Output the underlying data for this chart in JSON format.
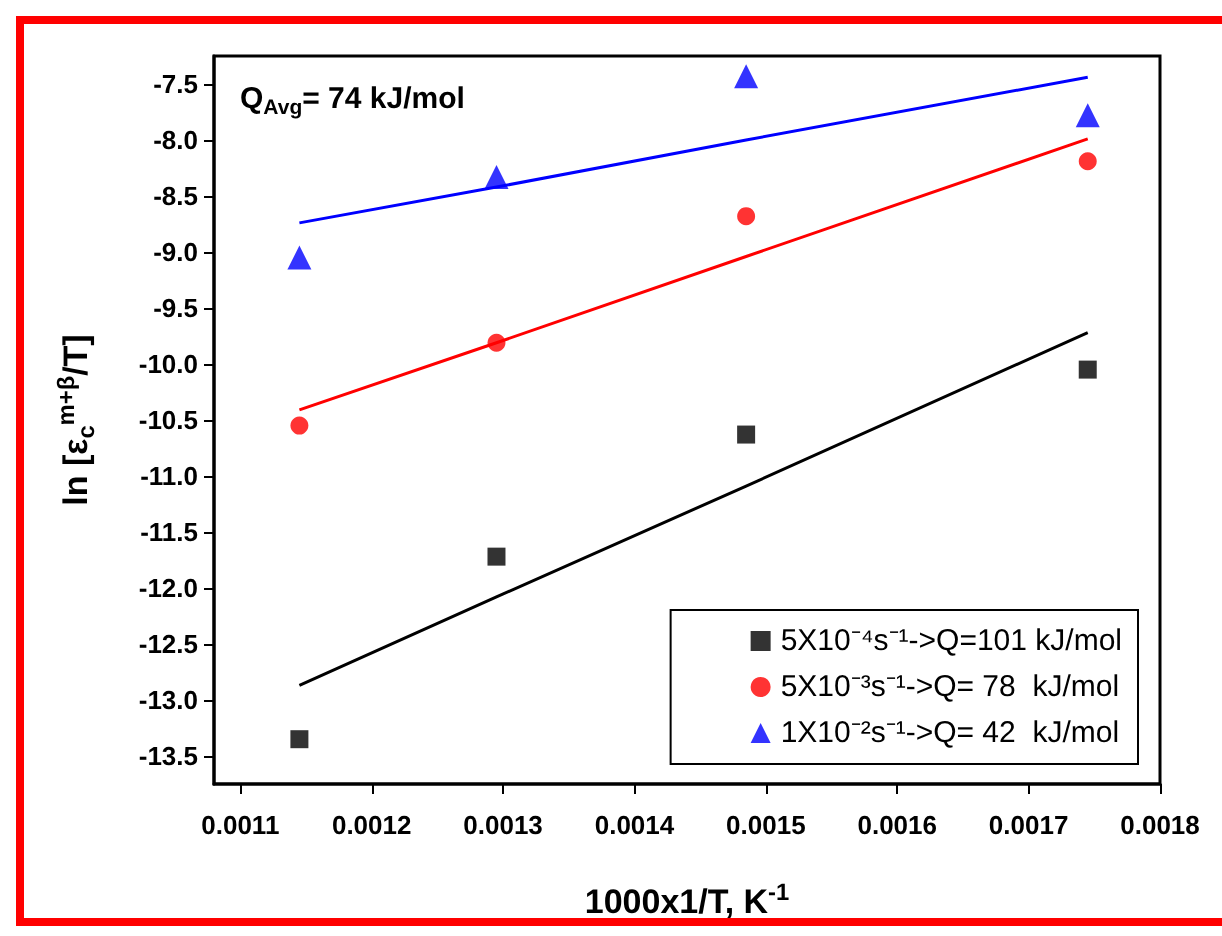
{
  "chart_data": {
    "type": "scatter",
    "xlabel": "1000x1/T, K$^{-1}$",
    "ylabel": "ln [ε$_{c}$$^{m+β}$/T]",
    "annotations": [
      "Q$_{Avg}$= 74 kJ/mol"
    ],
    "x": [
      0.001145,
      0.001295,
      0.001485,
      0.001745
    ],
    "series": [
      {
        "name": "5X10⁻⁴s⁻¹->Q=101 kJ/mol",
        "color": "#000000",
        "marker": "square",
        "values": [
          -13.35,
          -11.72,
          -10.63,
          -10.05
        ]
      },
      {
        "name": "5X10⁻³s⁻¹->Q= 78  kJ/mol",
        "color": "#ff0000",
        "marker": "circle",
        "values": [
          -10.55,
          -9.81,
          -8.68,
          -8.19
        ]
      },
      {
        "name": "1X10⁻²s⁻¹->Q= 42  kJ/mol",
        "color": "#0000ff",
        "marker": "triangle",
        "values": [
          -9.05,
          -8.33,
          -7.43,
          -7.78
        ]
      },
      {
        "type": "line",
        "color": "#000000",
        "marker": "none",
        "values": [
          -12.87,
          -12.08,
          -11.09,
          -9.72
        ]
      },
      {
        "type": "line",
        "color": "#ff0000",
        "marker": "none",
        "values": [
          -10.41,
          -9.81,
          -9.04,
          -7.99
        ]
      },
      {
        "type": "line",
        "color": "#0000ff",
        "marker": "none",
        "values": [
          -8.74,
          -8.42,
          -8.0,
          -7.44
        ]
      }
    ],
    "xlim": [
      0.00108,
      0.0018
    ],
    "xticks": [
      0.0011,
      0.0012,
      0.0013,
      0.0014,
      0.0015,
      0.0016,
      0.0017,
      0.0018
    ],
    "ylim": [
      -13.75,
      -7.25
    ],
    "yticks": [
      -13.5,
      {
        "value": -13,
        "label": "-13.0"
      },
      -12.5,
      {
        "value": -12,
        "label": "-12.0"
      },
      -11.5,
      {
        "value": -11,
        "label": "-11.0"
      },
      -10.5,
      {
        "value": -10,
        "label": "-10.0"
      },
      -9.5,
      {
        "value": -9,
        "label": "-9.0"
      },
      -8.5,
      {
        "value": -8,
        "label": "-8.0"
      },
      -7.5
    ],
    "grid": false,
    "legend": "bottom right"
  }
}
